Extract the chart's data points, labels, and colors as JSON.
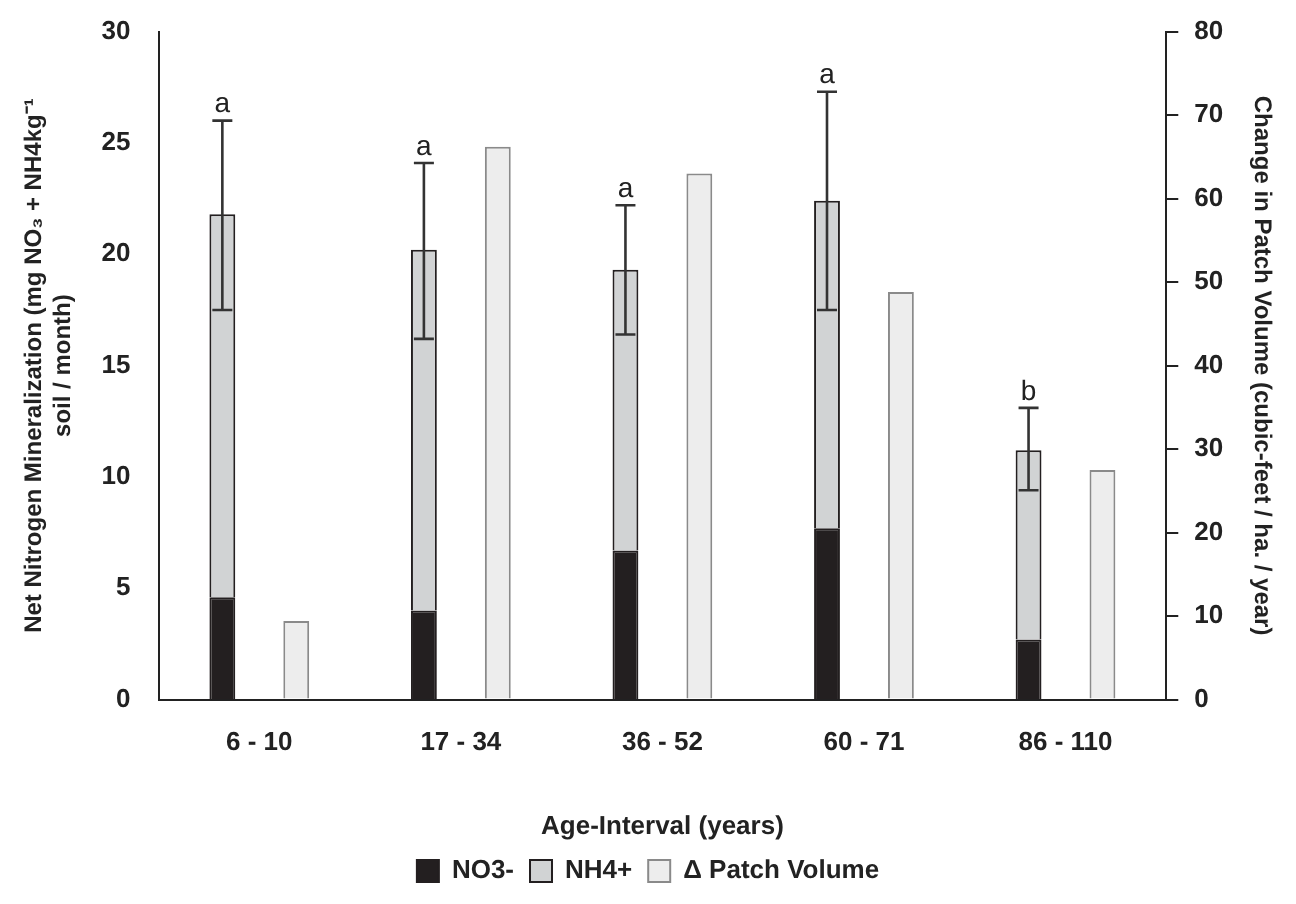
{
  "chart_data": {
    "type": "bar",
    "stacked": true,
    "xlabel": "Age-Interval (years)",
    "ylabel": "Net Nitrogen Mineralization (mg NO₃ + NH4kg⁻¹ soil / month)",
    "y2label": "Change in Patch Volume (cubic-feet / ha. / year)",
    "categories": [
      "6 - 10",
      "17 - 34",
      "36 - 52",
      "60 - 71",
      "86 - 110"
    ],
    "series": [
      {
        "name": "NO3-",
        "color": "#231f20",
        "values": [
          4.6,
          4.0,
          6.7,
          7.7,
          2.7
        ]
      },
      {
        "name": "NH4+",
        "color": "#d1d3d4",
        "values": [
          17.2,
          16.2,
          12.6,
          14.7,
          8.5
        ],
        "errors": [
          [
            17.5,
            26
          ],
          [
            16.2,
            24.1
          ],
          [
            16.4,
            22.2
          ],
          [
            17.5,
            27.3
          ],
          [
            9.4,
            13.1
          ]
        ]
      },
      {
        "name": "Δ Patch Volume",
        "color": "#ededed",
        "axis": "y2",
        "values": [
          9.4,
          66.2,
          63,
          48.8,
          27.5
        ]
      }
    ],
    "ylim": [
      0,
      30
    ],
    "yticks": [
      0,
      5,
      10,
      15,
      20,
      25,
      30
    ],
    "y2lim": [
      0,
      80
    ],
    "y2ticks": [
      0,
      10,
      20,
      30,
      40,
      50,
      60,
      70,
      80
    ],
    "annotations": [
      "a",
      "a",
      "a",
      "a",
      "b"
    ],
    "grid": false,
    "legend": "bottom"
  }
}
